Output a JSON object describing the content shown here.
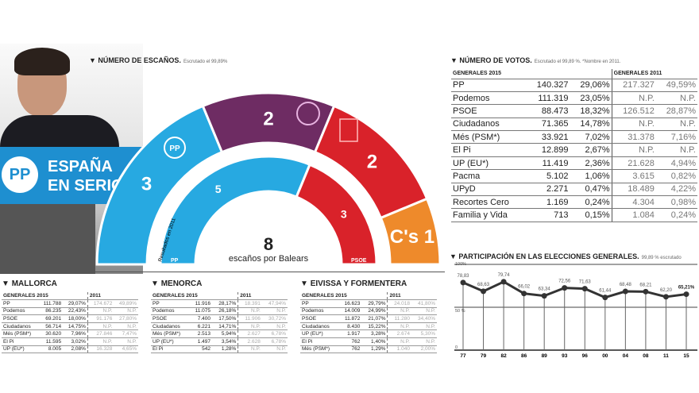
{
  "photo": {
    "banner_line1": "ESPAÑA",
    "banner_line2": "EN SERIO",
    "logo": "PP"
  },
  "seats": {
    "title": "NÚMERO DE ESCAÑOS.",
    "subtitle": "Escrutado el 99,89%",
    "total": "8",
    "total_label": "escaños por Balears",
    "inner_label": "Resultados en 2011",
    "outer_label_pp": "PP",
    "inner_label_psoe": "PSOE"
  },
  "votes": {
    "title": "NÚMERO DE VOTOS.",
    "subtitle": "Escrutado el 99,89 %. *Nombre en 2011.",
    "header_2015": "GENERALES 2015",
    "header_2011": "GENERALES 2011",
    "rows": [
      [
        "PP",
        "140.327",
        "29,06%",
        "217.327",
        "49,59%"
      ],
      [
        "Podemos",
        "111.319",
        "23,05%",
        "N.P.",
        "N.P."
      ],
      [
        "PSOE",
        "88.473",
        "18,32%",
        "126.512",
        "28,87%"
      ],
      [
        "Ciudadanos",
        "71.365",
        "14,78%",
        "N.P.",
        "N.P."
      ],
      [
        "Més (PSM*)",
        "33.921",
        "7,02%",
        "31.378",
        "7,16%"
      ],
      [
        "El Pi",
        "12.899",
        "2,67%",
        "N.P.",
        "N.P."
      ],
      [
        "UP (EU*)",
        "11.419",
        "2,36%",
        "21.628",
        "4,94%"
      ],
      [
        "Pacma",
        "5.102",
        "1,06%",
        "3.615",
        "0,82%"
      ],
      [
        "UPyD",
        "2.271",
        "0,47%",
        "18.489",
        "4,22%"
      ],
      [
        "Recortes Cero",
        "1.169",
        "0,24%",
        "4.304",
        "0,98%"
      ],
      [
        "Familia y Vida",
        "713",
        "0,15%",
        "1.084",
        "0,24%"
      ]
    ]
  },
  "islands": [
    {
      "title": "MALLORCA",
      "header_2015": "GENERALES 2015",
      "header_2011": "2011",
      "rows": [
        [
          "PP",
          "111.788",
          "29,07%",
          "174.672",
          "49,89%"
        ],
        [
          "Podemos",
          "86.235",
          "22,43%",
          "N.P.",
          "N.P."
        ],
        [
          "PSOE",
          "69.201",
          "18,00%",
          "91.176",
          "27,80%"
        ],
        [
          "Ciudadanos",
          "56.714",
          "14,75%",
          "N.P.",
          "N.P."
        ],
        [
          "Més (PSM*)",
          "30.620",
          "7,96%",
          "27.846",
          "7,47%"
        ],
        [
          "El Pi",
          "11.595",
          "3,02%",
          "N.P.",
          "N.P."
        ],
        [
          "UP (EU*)",
          "8.005",
          "2,08%",
          "16.328",
          "4,65%"
        ]
      ]
    },
    {
      "title": "MENORCA",
      "header_2015": "GENERALES 2015",
      "header_2011": "2011",
      "rows": [
        [
          "PP",
          "11.916",
          "28,17%",
          "18.391",
          "47,94%"
        ],
        [
          "Podemos",
          "11.075",
          "26,18%",
          "N.P.",
          "N.P."
        ],
        [
          "PSOE",
          "7.400",
          "17,50%",
          "11.906",
          "30,72%"
        ],
        [
          "Ciudadanos",
          "6.221",
          "14,71%",
          "N.P.",
          "N.P."
        ],
        [
          "Més (PSM*)",
          "2.513",
          "5,94%",
          "2.627",
          "6,78%"
        ],
        [
          "UP (EU*)",
          "1.497",
          "3,54%",
          "2.628",
          "6,78%"
        ],
        [
          "El Pi",
          "542",
          "1,28%",
          "N.P.",
          "N.P."
        ]
      ]
    },
    {
      "title": "EIVISSA Y FORMENTERA",
      "header_2015": "GENERALES 2015",
      "header_2011": "2011",
      "rows": [
        [
          "PP",
          "16.623",
          "29,79%",
          "24.018",
          "41,80%"
        ],
        [
          "Podemos",
          "14.009",
          "24,99%",
          "N.P.",
          "N.P."
        ],
        [
          "PSOE",
          "11.872",
          "21,07%",
          "11.280",
          "34,40%"
        ],
        [
          "Ciudadanos",
          "8.430",
          "15,22%",
          "N.P.",
          "N.P."
        ],
        [
          "UP (EU*)",
          "1.917",
          "3,28%",
          "2.674",
          "5,30%"
        ],
        [
          "El Pi",
          "762",
          "1,40%",
          "N.P.",
          "N.P."
        ],
        [
          "Més (PSM*)",
          "762",
          "1,29%",
          "1.040",
          "2,00%"
        ]
      ]
    }
  ],
  "chart_data": [
    {
      "type": "pie",
      "title": "NÚMERO DE ESCAÑOS.",
      "ring": "2015",
      "categories": [
        "PP",
        "Podemos",
        "PSOE",
        "C's"
      ],
      "values": [
        3,
        2,
        2,
        1
      ],
      "colors": [
        "#27a9e1",
        "#6e2c63",
        "#d9222a",
        "#ee8a2b"
      ],
      "labels": [
        "3",
        "2",
        "2",
        "C's 1"
      ]
    },
    {
      "type": "pie",
      "ring": "2011",
      "categories": [
        "PP",
        "PSOE"
      ],
      "values": [
        5,
        3
      ],
      "colors": [
        "#27a9e1",
        "#d9222a"
      ],
      "labels": [
        "5",
        "3"
      ]
    },
    {
      "type": "line",
      "title": "PARTICIPACIÓN EN LAS ELECCIONES GENERALES.",
      "subtitle": "99,89 % escrutado",
      "x": [
        "77",
        "79",
        "82",
        "86",
        "89",
        "93",
        "96",
        "00",
        "04",
        "08",
        "11",
        "15"
      ],
      "y": [
        78.83,
        68.63,
        79.74,
        66.02,
        63.34,
        72.56,
        71.63,
        61.44,
        68.48,
        68.21,
        62.2,
        65.21
      ],
      "labels": [
        "78,83",
        "68,63",
        "79,74",
        "66,02",
        "63,34",
        "72,56",
        "71,63",
        "61,44",
        "68,48",
        "68,21",
        "62,20",
        "65,21%"
      ],
      "ylim": [
        0,
        100
      ],
      "yticks": [
        "0",
        "50 %",
        "100%"
      ],
      "color": "#333"
    }
  ]
}
